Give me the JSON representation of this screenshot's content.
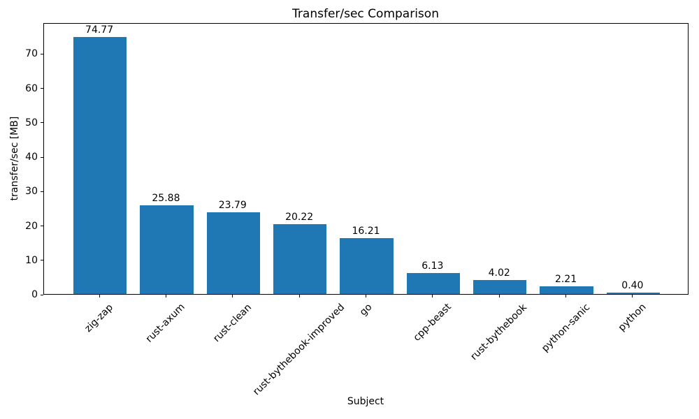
{
  "chart_data": {
    "type": "bar",
    "title": "Transfer/sec Comparison",
    "xlabel": "Subject",
    "ylabel": "transfer/sec [MB]",
    "categories": [
      "zig-zap",
      "rust-axum",
      "rust-clean",
      "rust-bythebook-improved",
      "go",
      "cpp-beast",
      "rust-bythebook",
      "python-sanic",
      "python"
    ],
    "values": [
      74.77,
      25.88,
      23.79,
      20.22,
      16.21,
      6.13,
      4.02,
      2.21,
      0.4
    ],
    "value_labels": [
      "74.77",
      "25.88",
      "23.79",
      "20.22",
      "16.21",
      "6.13",
      "4.02",
      "2.21",
      "0.40"
    ],
    "yticks": [
      0,
      10,
      20,
      30,
      40,
      50,
      60,
      70
    ],
    "ylim": [
      0,
      79
    ],
    "bar_color": "#1f77b4",
    "text_color": "#000000",
    "grid": false,
    "legend": "none",
    "x_tick_rotation_deg": 45
  }
}
